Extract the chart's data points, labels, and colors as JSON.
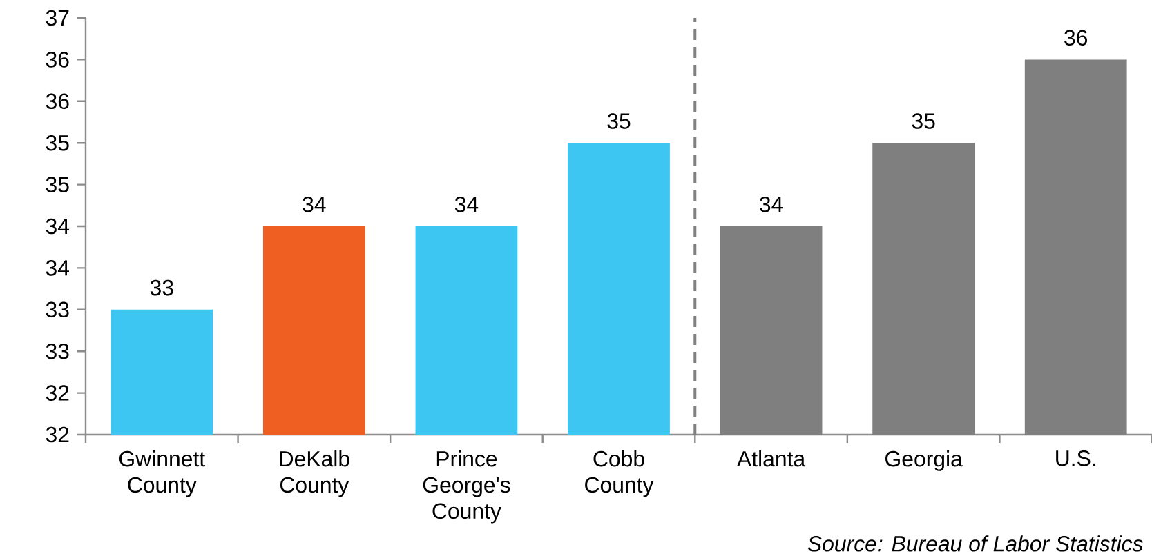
{
  "chart_data": {
    "type": "bar",
    "categories": [
      "Gwinnett County",
      "DeKalb County",
      "Prince George's County",
      "Cobb County",
      "Atlanta",
      "Georgia",
      "U.S."
    ],
    "values": [
      33.5,
      34.5,
      34.5,
      35.5,
      34.5,
      35.5,
      36.5
    ],
    "colors": [
      "#3ec6f3",
      "#f05f22",
      "#3ec6f3",
      "#3ec6f3",
      "#7f7f7f",
      "#7f7f7f",
      "#7f7f7f"
    ],
    "value_labels": [
      "33",
      "34",
      "34",
      "35",
      "34",
      "35",
      "36"
    ],
    "ylim": [
      32,
      37
    ],
    "yticks": [
      32,
      {
        "value": 32.5,
        "label": "32"
      },
      33,
      {
        "value": 33.5,
        "label": "33"
      },
      34,
      {
        "value": 34.5,
        "label": "34"
      },
      35,
      {
        "value": 35.5,
        "label": "35"
      },
      36,
      {
        "value": 36.5,
        "label": "36"
      },
      37
    ],
    "annotations": [
      "Source: Bureau of Labor Statistics"
    ]
  }
}
